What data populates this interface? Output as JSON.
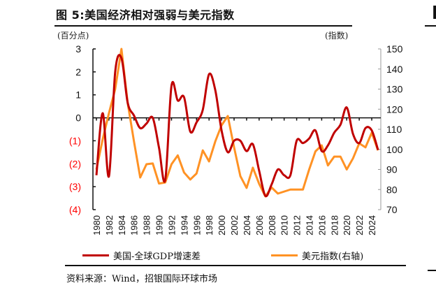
{
  "header": {
    "title": "图 5:美国经济相对强弱与美元指数",
    "left_unit": "(百分点)",
    "right_unit": "(指数)"
  },
  "footer": {
    "source": "资料来源：Wind，招银国际环球市场"
  },
  "chart_data": {
    "type": "line",
    "title": "图 5:美国经济相对强弱与美元指数",
    "x": [
      1980,
      1981,
      1982,
      1983,
      1984,
      1985,
      1986,
      1987,
      1988,
      1989,
      1990,
      1991,
      1992,
      1993,
      1994,
      1995,
      1996,
      1997,
      1998,
      1999,
      2000,
      2001,
      2002,
      2003,
      2004,
      2005,
      2006,
      2007,
      2008,
      2009,
      2010,
      2011,
      2012,
      2013,
      2014,
      2015,
      2016,
      2017,
      2018,
      2019,
      2020,
      2021,
      2022,
      2023,
      2024,
      2025
    ],
    "x_tick_labels": [
      "1980",
      "1982",
      "1984",
      "1986",
      "1988",
      "1990",
      "1992",
      "1994",
      "1996",
      "1998",
      "2000",
      "2002",
      "2004",
      "2006",
      "2008",
      "2010",
      "2012",
      "2014",
      "2016",
      "2018",
      "2020",
      "2022",
      "2024"
    ],
    "y_left": {
      "label": "(百分点)",
      "range": [
        -4,
        3
      ],
      "tick_labels": [
        "3",
        "2",
        "1",
        "0",
        "(1)",
        "(2)",
        "(3)",
        "(4)"
      ],
      "ticks": [
        3,
        2,
        1,
        0,
        -1,
        -2,
        -3,
        -4
      ]
    },
    "y_right": {
      "label": "(指数)",
      "range": [
        70,
        150
      ],
      "tick_labels": [
        "150",
        "140",
        "130",
        "120",
        "110",
        "100",
        "90",
        "80",
        "70"
      ],
      "ticks": [
        150,
        140,
        130,
        120,
        110,
        100,
        90,
        80,
        70
      ]
    },
    "grid": false,
    "legend_position": "bottom",
    "series": [
      {
        "name": "美国-全球GDP增速差",
        "axis": "left",
        "color": "#C00000",
        "smooth": true,
        "values": [
          -2.5,
          0.2,
          -2.55,
          2.0,
          2.6,
          0.65,
          0.1,
          -0.45,
          -0.25,
          0,
          -1.3,
          -2.7,
          1.4,
          0.75,
          0.9,
          -0.6,
          -0.2,
          0.35,
          1.9,
          1.2,
          -0.55,
          -1.5,
          -1.0,
          -1.0,
          -1.45,
          -1.15,
          -2.3,
          -3.4,
          -2.9,
          -2.25,
          -2.5,
          -2.5,
          -1.0,
          -1.1,
          -0.9,
          -0.55,
          -1.45,
          -1.2,
          -0.65,
          -0.3,
          0.45,
          -0.7,
          -1.1,
          -0.45,
          -0.55,
          -1.4
        ]
      },
      {
        "name": "美元指数(右轴)",
        "axis": "right",
        "color": "#FF9224",
        "smooth": false,
        "values": [
          90,
          105,
          118,
          130,
          150,
          123,
          104,
          86,
          92.6,
          93,
          83,
          83.5,
          92.6,
          97,
          88.5,
          85,
          88,
          99.5,
          94,
          104,
          112,
          116.6,
          101,
          86.7,
          80.8,
          90.9,
          82.9,
          76.6,
          81,
          78,
          79,
          80,
          80,
          80,
          90,
          99,
          102,
          92,
          96.4,
          96.4,
          90,
          95.5,
          103,
          101,
          108.3,
          99.5
        ]
      }
    ],
    "negative_label_color": "#FF0000"
  }
}
